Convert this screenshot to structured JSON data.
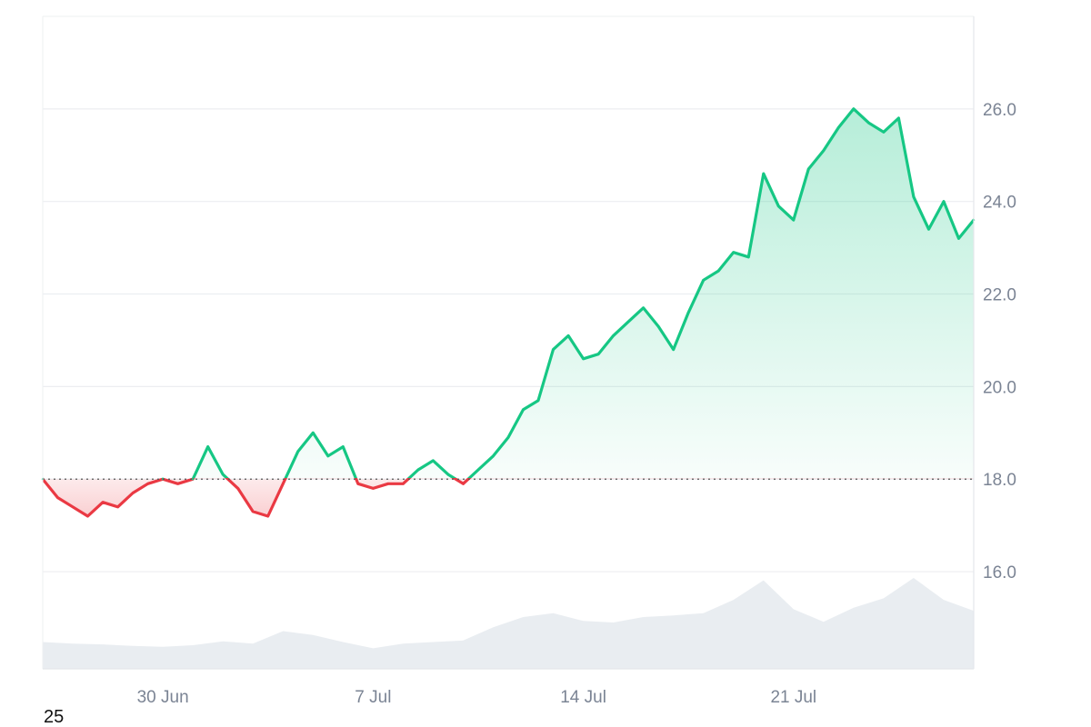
{
  "chart_data": {
    "type": "area",
    "baseline": 18.0,
    "ylim": [
      13.9,
      28.0
    ],
    "y_ticks": [
      "16.0",
      "18.0",
      "20.0",
      "22.0",
      "24.0",
      "26.0"
    ],
    "x_range": [
      "2025-06-26",
      "2025-07-27"
    ],
    "x_ticks": [
      {
        "date": "2025-06-30",
        "label": "30 Jun"
      },
      {
        "date": "2025-07-07",
        "label": "7 Jul"
      },
      {
        "date": "2025-07-14",
        "label": "14 Jul"
      },
      {
        "date": "2025-07-21",
        "label": "21 Jul"
      }
    ],
    "grid": true,
    "colors": {
      "up": "#16c784",
      "down": "#ea3943",
      "grid": "#eceef1",
      "axis_text": "#7b8494",
      "volume": "#e9edf1",
      "baseline": "#555555"
    },
    "price": {
      "x": [
        "2025-06-26",
        "2025-06-26T12:00",
        "2025-06-27",
        "2025-06-27T12:00",
        "2025-06-28",
        "2025-06-28T12:00",
        "2025-06-29",
        "2025-06-29T12:00",
        "2025-06-30",
        "2025-06-30T12:00",
        "2025-07-01",
        "2025-07-01T12:00",
        "2025-07-02",
        "2025-07-02T12:00",
        "2025-07-03",
        "2025-07-03T12:00",
        "2025-07-04",
        "2025-07-04T12:00",
        "2025-07-05",
        "2025-07-05T12:00",
        "2025-07-06",
        "2025-07-06T12:00",
        "2025-07-07",
        "2025-07-07T12:00",
        "2025-07-08",
        "2025-07-08T12:00",
        "2025-07-09",
        "2025-07-09T12:00",
        "2025-07-10",
        "2025-07-10T12:00",
        "2025-07-11",
        "2025-07-11T12:00",
        "2025-07-12",
        "2025-07-12T12:00",
        "2025-07-13",
        "2025-07-13T12:00",
        "2025-07-14",
        "2025-07-14T12:00",
        "2025-07-15",
        "2025-07-15T12:00",
        "2025-07-16",
        "2025-07-16T12:00",
        "2025-07-17",
        "2025-07-17T12:00",
        "2025-07-18",
        "2025-07-18T12:00",
        "2025-07-19",
        "2025-07-19T12:00",
        "2025-07-20",
        "2025-07-20T12:00",
        "2025-07-21",
        "2025-07-21T12:00",
        "2025-07-22",
        "2025-07-22T12:00",
        "2025-07-23",
        "2025-07-23T12:00",
        "2025-07-24",
        "2025-07-24T12:00",
        "2025-07-25",
        "2025-07-25T12:00",
        "2025-07-26",
        "2025-07-26T12:00",
        "2025-07-27"
      ],
      "values": [
        18.0,
        17.6,
        17.4,
        17.2,
        17.5,
        17.4,
        17.7,
        17.9,
        18.0,
        17.9,
        18.0,
        18.7,
        18.1,
        17.8,
        17.3,
        17.2,
        17.9,
        18.6,
        19.0,
        18.5,
        18.7,
        17.9,
        17.8,
        17.9,
        17.9,
        18.2,
        18.4,
        18.1,
        17.9,
        18.2,
        18.5,
        18.9,
        19.5,
        19.7,
        20.8,
        21.1,
        20.6,
        20.7,
        21.1,
        21.4,
        21.7,
        21.3,
        20.8,
        21.6,
        22.3,
        22.5,
        22.9,
        22.8,
        24.6,
        23.9,
        23.6,
        24.7,
        25.1,
        25.6,
        26.0,
        25.7,
        25.5,
        25.8,
        24.1,
        23.4,
        24.0,
        23.2,
        23.6
      ]
    },
    "volume": {
      "x": [
        "2025-06-26",
        "2025-06-27",
        "2025-06-28",
        "2025-06-29",
        "2025-06-30",
        "2025-07-01",
        "2025-07-02",
        "2025-07-03",
        "2025-07-04",
        "2025-07-05",
        "2025-07-06",
        "2025-07-07",
        "2025-07-08",
        "2025-07-09",
        "2025-07-10",
        "2025-07-11",
        "2025-07-12",
        "2025-07-13",
        "2025-07-14",
        "2025-07-15",
        "2025-07-16",
        "2025-07-17",
        "2025-07-18",
        "2025-07-19",
        "2025-07-20",
        "2025-07-21",
        "2025-07-22",
        "2025-07-23",
        "2025-07-24",
        "2025-07-25",
        "2025-07-26",
        "2025-07-27"
      ],
      "relative": [
        0.18,
        0.16,
        0.15,
        0.13,
        0.12,
        0.14,
        0.19,
        0.16,
        0.32,
        0.27,
        0.18,
        0.1,
        0.16,
        0.18,
        0.2,
        0.37,
        0.5,
        0.55,
        0.45,
        0.43,
        0.5,
        0.52,
        0.55,
        0.72,
        0.97,
        0.6,
        0.44,
        0.62,
        0.74,
        1.0,
        0.72,
        0.58
      ]
    }
  },
  "footer": {
    "label": "25"
  }
}
